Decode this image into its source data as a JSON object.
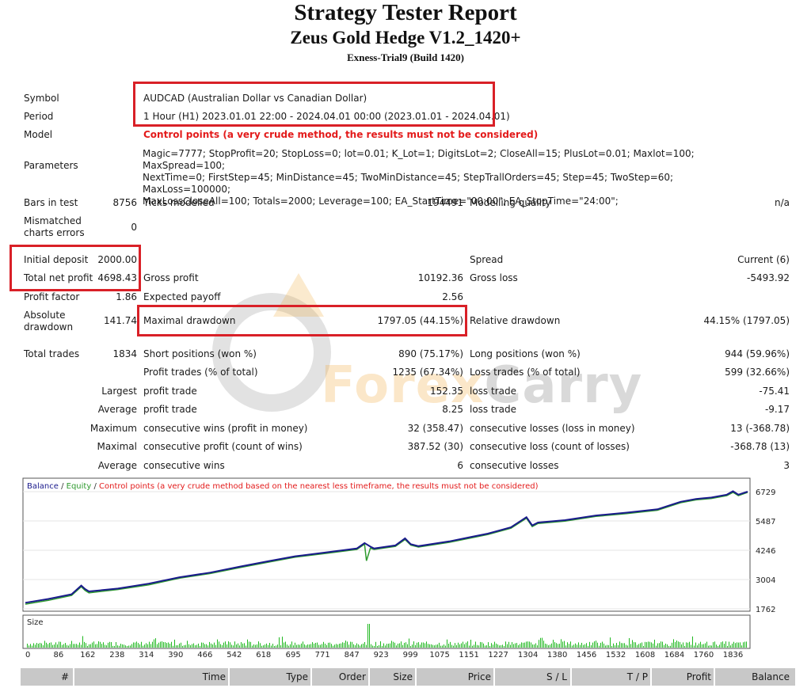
{
  "title": "Strategy Tester Report",
  "ea_name": "Zeus Gold Hedge V1.2_1420+",
  "server": "Exness-Trial9 (Build 1420)",
  "info": {
    "symbol_label": "Symbol",
    "symbol_value": "AUDCAD (Australian Dollar vs Canadian Dollar)",
    "period_label": "Period",
    "period_value": "1 Hour (H1) 2023.01.01 22:00 - 2024.04.01 00:00 (2023.01.01 - 2024.04.01)",
    "model_label": "Model",
    "model_value": "Control points (a very crude method, the results must not be considered)",
    "parameters_label": "Parameters",
    "parameters_lines": [
      "Magic=7777; StopProfit=20; StopLoss=0; lot=0.01; K_Lot=1; DigitsLot=2; CloseAll=15; PlusLot=0.01; Maxlot=100; MaxSpread=100;",
      "NextTime=0; FirstStep=45; MinDistance=45; TwoMinDistance=45; StepTrallOrders=45; Step=45; TwoStep=60; MaxLoss=100000;",
      "MaxLossCloseAll=100; Totals=2000; Leverage=100; EA_StartTime=\"00:00\"; EA_StopTime=\"24:00\";"
    ]
  },
  "stats": {
    "bars_label": "Bars in test",
    "bars_value": "8756",
    "ticks_label": "Ticks modelled",
    "ticks_value": "194491",
    "quality_label": "Modelling quality",
    "quality_value": "n/a",
    "mismatch_label_1": "Mismatched",
    "mismatch_label_2": "charts errors",
    "mismatch_value": "0",
    "deposit_label": "Initial deposit",
    "deposit_value": "2000.00",
    "spread_label": "Spread",
    "spread_value": "Current (6)",
    "net_label": "Total net profit",
    "net_value": "4698.43",
    "gross_profit_label": "Gross profit",
    "gross_profit_value": "10192.36",
    "gross_loss_label": "Gross loss",
    "gross_loss_value": "-5493.92",
    "pf_label": "Profit factor",
    "pf_value": "1.86",
    "payoff_label": "Expected payoff",
    "payoff_value": "2.56",
    "abs_dd_label_1": "Absolute",
    "abs_dd_label_2": "drawdown",
    "abs_dd_value": "141.74",
    "max_dd_label": "Maximal drawdown",
    "max_dd_value": "1797.05 (44.15%)",
    "rel_dd_label": "Relative drawdown",
    "rel_dd_value": "44.15% (1797.05)",
    "total_trades_label": "Total trades",
    "total_trades_value": "1834",
    "short_label": "Short positions (won %)",
    "short_value": "890 (75.17%)",
    "long_label": "Long positions (won %)",
    "long_value": "944 (59.96%)",
    "profit_trades_label": "Profit trades (% of total)",
    "profit_trades_value": "1235 (67.34%)",
    "loss_trades_label": "Loss trades (% of total)",
    "loss_trades_value": "599 (32.66%)",
    "largest_label": "Largest",
    "largest_profit_label": "profit trade",
    "largest_profit_value": "152.35",
    "largest_loss_label": "loss trade",
    "largest_loss_value": "-75.41",
    "average_label": "Average",
    "average_profit_label": "profit trade",
    "average_profit_value": "8.25",
    "average_loss_label": "loss trade",
    "average_loss_value": "-9.17",
    "maximum_label": "Maximum",
    "max_cons_wins_label": "consecutive wins (profit in money)",
    "max_cons_wins_value": "32 (358.47)",
    "max_cons_losses_label": "consecutive losses (loss in money)",
    "max_cons_losses_value": "13 (-368.78)",
    "maximal_label": "Maximal",
    "maximal_profit_label": "consecutive profit (count of wins)",
    "maximal_profit_value": "387.52 (30)",
    "maximal_loss_label": "consecutive loss (count of losses)",
    "maximal_loss_value": "-368.78 (13)",
    "average2_label": "Average",
    "avg_cons_wins_label": "consecutive wins",
    "avg_cons_wins_value": "6",
    "avg_cons_losses_label": "consecutive losses",
    "avg_cons_losses_value": "3"
  },
  "watermark": {
    "part1": "Forex",
    "part2": "Carry"
  },
  "chart_data": {
    "type": "line",
    "legend": {
      "balance": "Balance",
      "sep1": " / ",
      "equity": "Equity",
      "sep2": " / ",
      "note": "Control points (a very crude method based on the nearest less timeframe, the results must not be considered)"
    },
    "colors": {
      "balance": "#1a1a8c",
      "equity": "#2e9a2e",
      "note": "#e31b1b",
      "size": "#1fb81f"
    },
    "y_ticks": [
      1762,
      3004,
      4246,
      5487,
      6729
    ],
    "ylim": [
      1762,
      6729
    ],
    "x_ticks": [
      0,
      86,
      162,
      238,
      314,
      390,
      466,
      542,
      618,
      695,
      771,
      847,
      923,
      999,
      1075,
      1151,
      1227,
      1304,
      1380,
      1456,
      1532,
      1608,
      1684,
      1760,
      1836
    ],
    "xlim": [
      0,
      1874
    ],
    "size_label": "Size",
    "series": [
      {
        "name": "Balance",
        "x": [
          0,
          60,
          120,
          145,
          155,
          165,
          240,
          320,
          400,
          480,
          560,
          630,
          700,
          780,
          860,
          880,
          895,
          905,
          960,
          985,
          1000,
          1020,
          1100,
          1160,
          1200,
          1260,
          1300,
          1315,
          1330,
          1400,
          1480,
          1560,
          1640,
          1700,
          1740,
          1780,
          1820,
          1836,
          1850,
          1874
        ],
        "values": [
          2020,
          2180,
          2380,
          2750,
          2600,
          2500,
          2620,
          2830,
          3100,
          3300,
          3560,
          3780,
          3990,
          4150,
          4320,
          4550,
          4400,
          4320,
          4450,
          4750,
          4500,
          4420,
          4620,
          4820,
          4950,
          5220,
          5650,
          5300,
          5420,
          5520,
          5720,
          5840,
          5980,
          6300,
          6420,
          6480,
          6600,
          6750,
          6600,
          6729
        ]
      },
      {
        "name": "Equity",
        "x": [
          0,
          60,
          120,
          145,
          155,
          165,
          240,
          320,
          400,
          480,
          560,
          630,
          700,
          780,
          860,
          880,
          885,
          895,
          905,
          960,
          985,
          1000,
          1020,
          1100,
          1160,
          1200,
          1260,
          1300,
          1315,
          1330,
          1400,
          1480,
          1560,
          1640,
          1700,
          1740,
          1780,
          1820,
          1836,
          1850,
          1874
        ],
        "values": [
          1960,
          2120,
          2330,
          2700,
          2540,
          2440,
          2580,
          2780,
          3060,
          3260,
          3520,
          3740,
          3950,
          4110,
          4280,
          4500,
          3800,
          4330,
          4280,
          4410,
          4700,
          4460,
          4380,
          4580,
          4780,
          4910,
          5180,
          5600,
          5250,
          5380,
          5480,
          5680,
          5800,
          5940,
          6260,
          6380,
          6440,
          6560,
          6700,
          6560,
          6700
        ]
      }
    ]
  },
  "trade_table": {
    "headers": [
      "#",
      "Time",
      "Type",
      "Order",
      "Size",
      "Price",
      "S / L",
      "T / P",
      "Profit",
      "Balance"
    ]
  }
}
